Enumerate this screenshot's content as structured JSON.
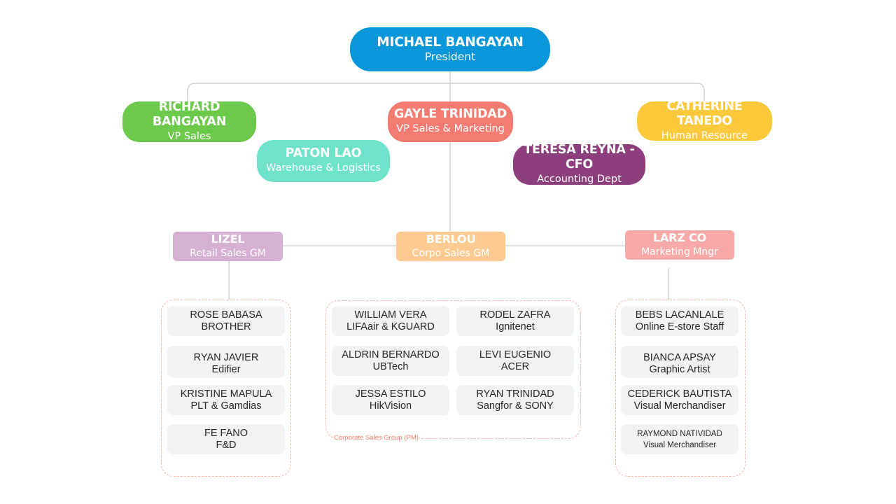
{
  "colors": {
    "president": "#0a97d9",
    "vp_sales": "#6cc94c",
    "vp_marketing": "#f47b72",
    "human_resource": "#fbc93b",
    "warehouse": "#6ee3c9",
    "accounting": "#8c3f7c",
    "retail_gm": "#d5b0d3",
    "corpo_gm": "#fdcb92",
    "marketing_mngr": "#f9a9a7",
    "card_bg": "#f2f2f2",
    "group_border": "#f4b2a6",
    "connector": "#d0d0d0"
  },
  "nodes": {
    "president": {
      "name": "MICHAEL BANGAYAN",
      "role": "President"
    },
    "vp_sales": {
      "name": "RICHARD BANGAYAN",
      "role": "VP Sales"
    },
    "vp_marketing": {
      "name": "GAYLE TRINIDAD",
      "role": "VP Sales & Marketing"
    },
    "human_resource": {
      "name": "CATHERINE TANEDO",
      "role": "Human Resource"
    },
    "warehouse": {
      "name": "PATON LAO",
      "role": "Warehouse & Logistics"
    },
    "accounting": {
      "name": "TERESA REYNA - CFO",
      "role": "Accounting Dept"
    },
    "retail_gm": {
      "name": "LIZEL",
      "role": "Retail Sales GM"
    },
    "corpo_gm": {
      "name": "BERLOU",
      "role": "Corpo Sales GM"
    },
    "marketing_mngr": {
      "name": "LARZ CO",
      "role": "Marketing Mngr"
    }
  },
  "retail_team": [
    {
      "name": "ROSE BABASA",
      "brand": "BROTHER"
    },
    {
      "name": "RYAN JAVIER",
      "brand": "Edifier"
    },
    {
      "name": "KRISTINE MAPULA",
      "brand": "PLT & Gamdias"
    },
    {
      "name": "FE FANO",
      "brand": "F&D"
    }
  ],
  "corporate_team": {
    "label": "Corporate Sales Group (PM)",
    "members": [
      {
        "name": "WILLIAM VERA",
        "brand": "LIFAair & KGUARD"
      },
      {
        "name": "RODEL ZAFRA",
        "brand": "Ignitenet"
      },
      {
        "name": "ALDRIN BERNARDO",
        "brand": "UBTech"
      },
      {
        "name": "LEVI EUGENIO",
        "brand": "ACER"
      },
      {
        "name": "JESSA ESTILO",
        "brand": "HikVision"
      },
      {
        "name": "RYAN TRINIDAD",
        "brand": "Sangfor & SONY"
      }
    ]
  },
  "marketing_team": [
    {
      "name": "BEBS LACANLALE",
      "brand": "Online E-store Staff"
    },
    {
      "name": "BIANCA APSAY",
      "brand": "Graphic Artist"
    },
    {
      "name": "CEDERICK BAUTISTA",
      "brand": "Visual Merchandiser"
    },
    {
      "name": "RAYMOND NATIVIDAD",
      "brand": "Visual Merchandiser"
    }
  ]
}
